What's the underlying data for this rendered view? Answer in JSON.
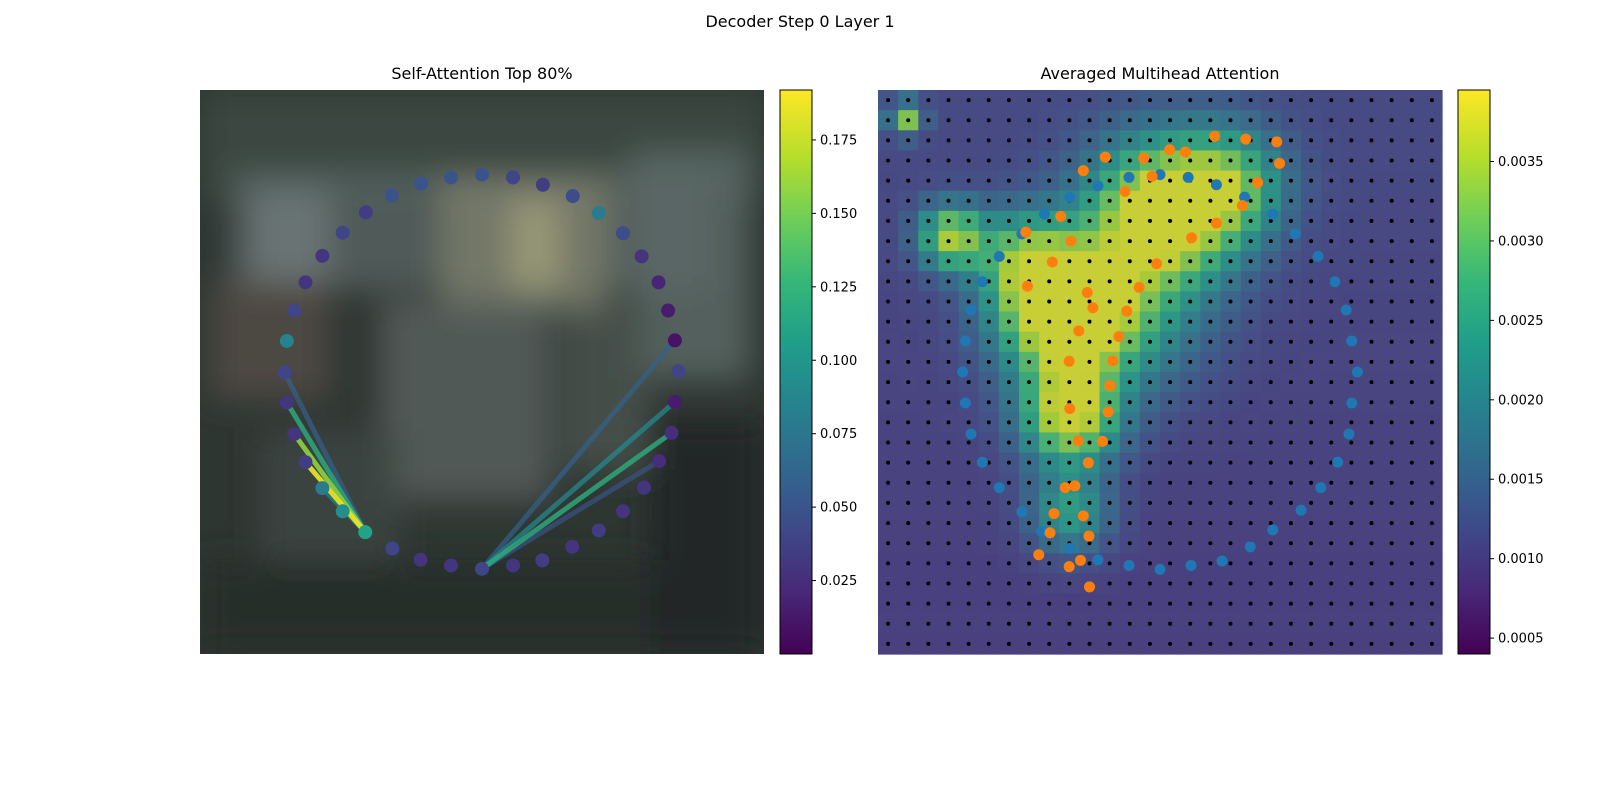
{
  "figure": {
    "title": "Decoder Step 0 Layer 1"
  },
  "colors": {
    "pred_points": "#ff7f0e",
    "gt_points": "#1f77b4",
    "grid_dots": "#000000",
    "viridis": [
      "#440154",
      "#482878",
      "#3e4989",
      "#31688e",
      "#26828e",
      "#1f9e89",
      "#35b779",
      "#6ece58",
      "#b5de2b",
      "#fde725"
    ]
  },
  "chart_data": [
    {
      "type": "scatter",
      "title": "Self-Attention Top 80%",
      "background": "blurred photo of a vehicle",
      "points": [
        {
          "x": 0.5,
          "y": 0.15,
          "v": 0.05
        },
        {
          "x": 0.555,
          "y": 0.155,
          "v": 0.04
        },
        {
          "x": 0.608,
          "y": 0.168,
          "v": 0.035
        },
        {
          "x": 0.661,
          "y": 0.188,
          "v": 0.045
        },
        {
          "x": 0.707,
          "y": 0.218,
          "v": 0.08
        },
        {
          "x": 0.75,
          "y": 0.254,
          "v": 0.045
        },
        {
          "x": 0.783,
          "y": 0.295,
          "v": 0.03
        },
        {
          "x": 0.813,
          "y": 0.341,
          "v": 0.02
        },
        {
          "x": 0.83,
          "y": 0.391,
          "v": 0.015
        },
        {
          "x": 0.842,
          "y": 0.444,
          "v": 0.01
        },
        {
          "x": 0.848,
          "y": 0.499,
          "v": 0.04
        },
        {
          "x": 0.842,
          "y": 0.553,
          "v": 0.015
        },
        {
          "x": 0.836,
          "y": 0.608,
          "v": 0.025
        },
        {
          "x": 0.814,
          "y": 0.658,
          "v": 0.025
        },
        {
          "x": 0.787,
          "y": 0.705,
          "v": 0.03
        },
        {
          "x": 0.75,
          "y": 0.747,
          "v": 0.03
        },
        {
          "x": 0.707,
          "y": 0.781,
          "v": 0.035
        },
        {
          "x": 0.66,
          "y": 0.81,
          "v": 0.03
        },
        {
          "x": 0.607,
          "y": 0.834,
          "v": 0.035
        },
        {
          "x": 0.555,
          "y": 0.843,
          "v": 0.03
        },
        {
          "x": 0.5,
          "y": 0.849,
          "v": 0.04
        },
        {
          "x": 0.445,
          "y": 0.843,
          "v": 0.03
        },
        {
          "x": 0.391,
          "y": 0.833,
          "v": 0.03
        },
        {
          "x": 0.341,
          "y": 0.813,
          "v": 0.04
        },
        {
          "x": 0.293,
          "y": 0.784,
          "v": 0.11
        },
        {
          "x": 0.253,
          "y": 0.747,
          "v": 0.095
        },
        {
          "x": 0.217,
          "y": 0.706,
          "v": 0.08
        },
        {
          "x": 0.187,
          "y": 0.66,
          "v": 0.035
        },
        {
          "x": 0.167,
          "y": 0.61,
          "v": 0.03
        },
        {
          "x": 0.154,
          "y": 0.554,
          "v": 0.03
        },
        {
          "x": 0.15,
          "y": 0.501,
          "v": 0.04
        },
        {
          "x": 0.154,
          "y": 0.445,
          "v": 0.085
        },
        {
          "x": 0.167,
          "y": 0.391,
          "v": 0.04
        },
        {
          "x": 0.187,
          "y": 0.341,
          "v": 0.03
        },
        {
          "x": 0.217,
          "y": 0.294,
          "v": 0.03
        },
        {
          "x": 0.253,
          "y": 0.253,
          "v": 0.04
        },
        {
          "x": 0.294,
          "y": 0.217,
          "v": 0.035
        },
        {
          "x": 0.34,
          "y": 0.187,
          "v": 0.05
        },
        {
          "x": 0.392,
          "y": 0.166,
          "v": 0.05
        },
        {
          "x": 0.445,
          "y": 0.155,
          "v": 0.05
        }
      ],
      "edges": [
        {
          "from": 24,
          "to": 29,
          "v": 0.12
        },
        {
          "from": 24,
          "to": 28,
          "v": 0.16
        },
        {
          "from": 24,
          "to": 27,
          "v": 0.185
        },
        {
          "from": 24,
          "to": 26,
          "v": 0.085
        },
        {
          "from": 24,
          "to": 30,
          "v": 0.06
        },
        {
          "from": 20,
          "to": 9,
          "v": 0.06
        },
        {
          "from": 20,
          "to": 11,
          "v": 0.09
        },
        {
          "from": 20,
          "to": 12,
          "v": 0.12
        },
        {
          "from": 20,
          "to": 13,
          "v": 0.05
        }
      ],
      "colorbar": {
        "min": 0.0,
        "max": 0.192,
        "ticks": [
          0.025,
          0.05,
          0.075,
          0.1,
          0.125,
          0.15,
          0.175
        ],
        "tick_labels": [
          "0.025",
          "0.050",
          "0.075",
          "0.100",
          "0.125",
          "0.150",
          "0.175"
        ]
      }
    },
    {
      "type": "heatmap",
      "title": "Averaged Multihead Attention",
      "grid_size": 28,
      "hotspots": [
        {
          "cx": 0.33,
          "cy": 0.4,
          "s": 0.08,
          "a": 1.0
        },
        {
          "cx": 0.34,
          "cy": 0.58,
          "s": 0.06,
          "a": 0.85
        },
        {
          "cx": 0.5,
          "cy": 0.22,
          "s": 0.09,
          "a": 0.95
        },
        {
          "cx": 0.26,
          "cy": 0.3,
          "s": 0.06,
          "a": 0.55
        },
        {
          "cx": 0.13,
          "cy": 0.26,
          "s": 0.04,
          "a": 0.75
        },
        {
          "cx": 0.34,
          "cy": 0.75,
          "s": 0.05,
          "a": 0.45
        },
        {
          "cx": 0.62,
          "cy": 0.17,
          "s": 0.07,
          "a": 0.55
        },
        {
          "cx": 0.05,
          "cy": 0.05,
          "s": 0.02,
          "a": 0.7
        },
        {
          "cx": 0.44,
          "cy": 0.4,
          "s": 0.1,
          "a": 0.35
        }
      ],
      "gt_points": [
        [
          0.5,
          0.15
        ],
        [
          0.55,
          0.155
        ],
        [
          0.6,
          0.168
        ],
        [
          0.65,
          0.19
        ],
        [
          0.7,
          0.22
        ],
        [
          0.74,
          0.255
        ],
        [
          0.78,
          0.295
        ],
        [
          0.81,
          0.34
        ],
        [
          0.83,
          0.39
        ],
        [
          0.84,
          0.445
        ],
        [
          0.85,
          0.5
        ],
        [
          0.84,
          0.555
        ],
        [
          0.835,
          0.61
        ],
        [
          0.815,
          0.66
        ],
        [
          0.785,
          0.705
        ],
        [
          0.75,
          0.745
        ],
        [
          0.7,
          0.78
        ],
        [
          0.66,
          0.81
        ],
        [
          0.61,
          0.835
        ],
        [
          0.555,
          0.843
        ],
        [
          0.5,
          0.85
        ],
        [
          0.445,
          0.843
        ],
        [
          0.39,
          0.833
        ],
        [
          0.34,
          0.813
        ],
        [
          0.29,
          0.783
        ],
        [
          0.255,
          0.748
        ],
        [
          0.215,
          0.705
        ],
        [
          0.185,
          0.66
        ],
        [
          0.165,
          0.61
        ],
        [
          0.155,
          0.555
        ],
        [
          0.15,
          0.5
        ],
        [
          0.155,
          0.445
        ],
        [
          0.165,
          0.39
        ],
        [
          0.185,
          0.34
        ],
        [
          0.215,
          0.295
        ],
        [
          0.255,
          0.255
        ],
        [
          0.295,
          0.22
        ],
        [
          0.34,
          0.19
        ],
        [
          0.39,
          0.17
        ],
        [
          0.445,
          0.155
        ]
      ],
      "pred_points": [
        [
          0.545,
          0.11
        ],
        [
          0.597,
          0.082
        ],
        [
          0.652,
          0.087
        ],
        [
          0.707,
          0.092
        ],
        [
          0.712,
          0.13
        ],
        [
          0.673,
          0.164
        ],
        [
          0.646,
          0.205
        ],
        [
          0.6,
          0.236
        ],
        [
          0.556,
          0.262
        ],
        [
          0.494,
          0.308
        ],
        [
          0.463,
          0.35
        ],
        [
          0.441,
          0.392
        ],
        [
          0.427,
          0.437
        ],
        [
          0.416,
          0.48
        ],
        [
          0.411,
          0.524
        ],
        [
          0.408,
          0.571
        ],
        [
          0.398,
          0.623
        ],
        [
          0.373,
          0.661
        ],
        [
          0.332,
          0.705
        ],
        [
          0.312,
          0.751
        ],
        [
          0.305,
          0.785
        ],
        [
          0.285,
          0.824
        ],
        [
          0.339,
          0.845
        ],
        [
          0.375,
          0.881
        ],
        [
          0.359,
          0.834
        ],
        [
          0.374,
          0.791
        ],
        [
          0.364,
          0.755
        ],
        [
          0.349,
          0.702
        ],
        [
          0.355,
          0.622
        ],
        [
          0.34,
          0.565
        ],
        [
          0.339,
          0.481
        ],
        [
          0.356,
          0.427
        ],
        [
          0.381,
          0.386
        ],
        [
          0.371,
          0.359
        ],
        [
          0.265,
          0.348
        ],
        [
          0.262,
          0.252
        ],
        [
          0.309,
          0.305
        ],
        [
          0.342,
          0.268
        ],
        [
          0.324,
          0.224
        ],
        [
          0.364,
          0.143
        ],
        [
          0.403,
          0.119
        ],
        [
          0.438,
          0.18
        ],
        [
          0.486,
          0.153
        ],
        [
          0.471,
          0.121
        ],
        [
          0.517,
          0.106
        ]
      ],
      "colorbar": {
        "min": 0.0004,
        "max": 0.00395,
        "ticks": [
          0.0005,
          0.001,
          0.0015,
          0.002,
          0.0025,
          0.003,
          0.0035
        ],
        "tick_labels": [
          "0.0005",
          "0.0010",
          "0.0015",
          "0.0020",
          "0.0025",
          "0.0030",
          "0.0035"
        ]
      }
    }
  ]
}
